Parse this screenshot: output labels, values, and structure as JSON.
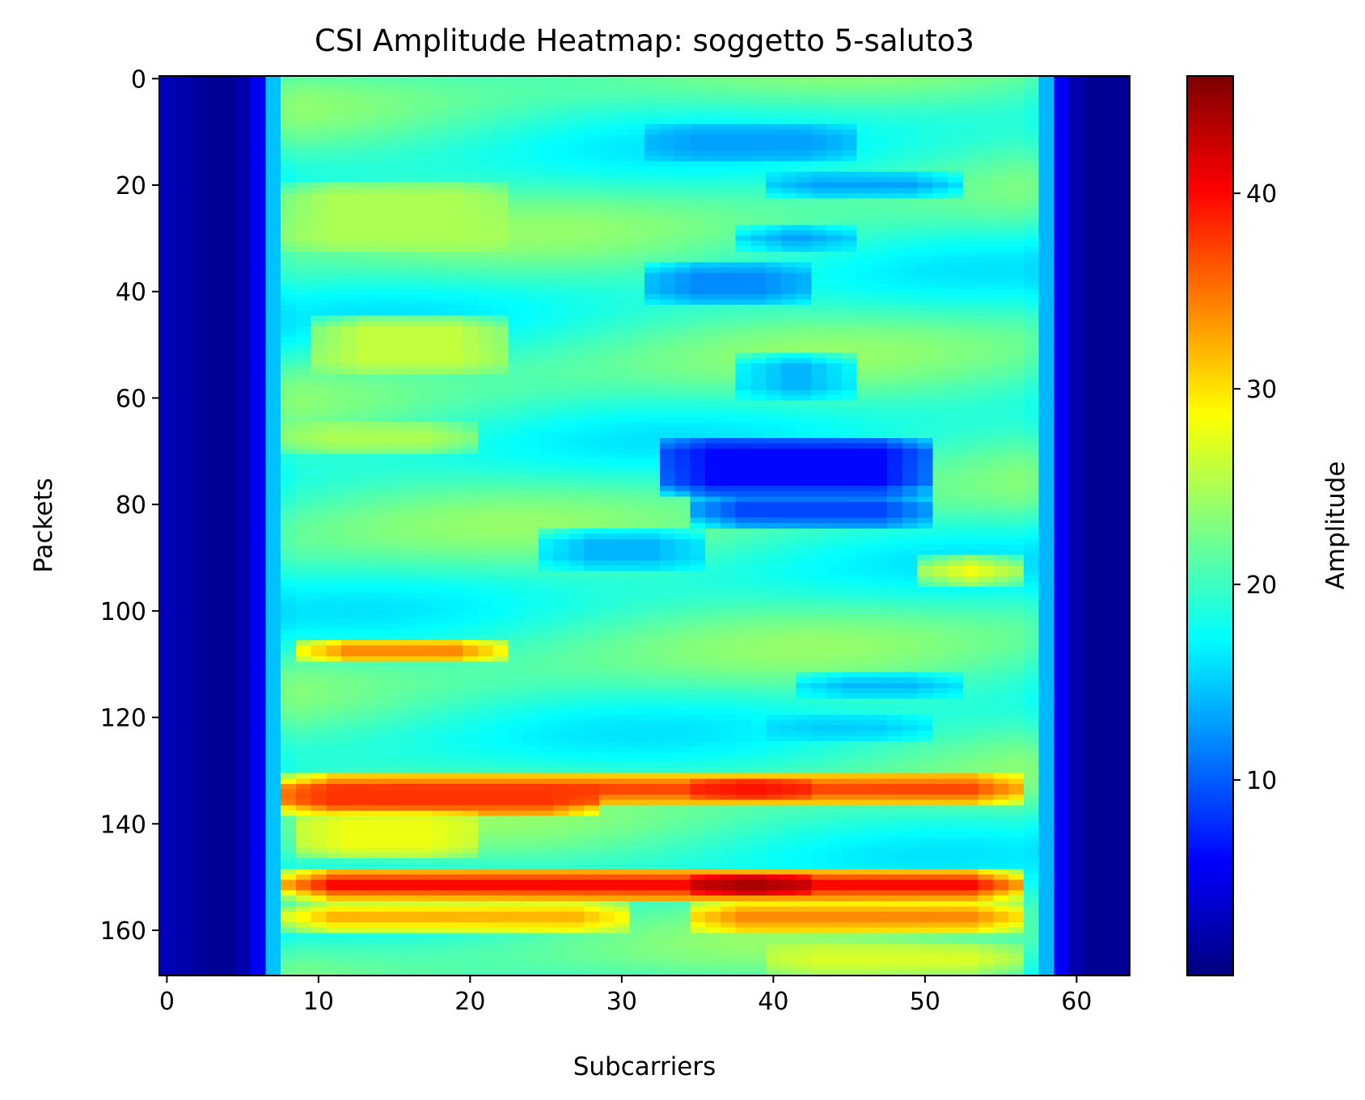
{
  "chart_data": {
    "type": "heatmap",
    "title": "CSI Amplitude Heatmap: soggetto 5-saluto3",
    "xlabel": "Subcarriers",
    "ylabel": "Packets",
    "colorbar_label": "Amplitude",
    "colormap": "jet",
    "x_range": [
      0,
      63
    ],
    "y_range": [
      0,
      168
    ],
    "y_inverted": true,
    "value_range": [
      0,
      46
    ],
    "x_ticks": [
      0,
      10,
      20,
      30,
      40,
      50,
      60
    ],
    "y_ticks": [
      0,
      20,
      40,
      60,
      80,
      100,
      120,
      140,
      160
    ],
    "colorbar_ticks": [
      10,
      20,
      30,
      40
    ],
    "grid": false,
    "subcarrier_profile": [
      2.5,
      2.0,
      1.5,
      1.0,
      1.0,
      2.0,
      5.5,
      14.5,
      19.5,
      20,
      20,
      20,
      20,
      20,
      20,
      20,
      20,
      20,
      20,
      20,
      20,
      20,
      20,
      20,
      20,
      20,
      20,
      20,
      20,
      20,
      20,
      20,
      20,
      20,
      20,
      20,
      20,
      20,
      20,
      20,
      20,
      20,
      20,
      20,
      20,
      20,
      20,
      20,
      20,
      20,
      20,
      20,
      20,
      20,
      20,
      20,
      20,
      19.5,
      14.0,
      5.5,
      2.0,
      1.0,
      1.0,
      1.0
    ],
    "features": [
      {
        "x": [
          8,
          56
        ],
        "y": [
          131,
          136
        ],
        "value": 37
      },
      {
        "x": [
          8,
          28
        ],
        "y": [
          133,
          138
        ],
        "value": 38
      },
      {
        "x": [
          35,
          42
        ],
        "y": [
          132,
          135
        ],
        "value": 40
      },
      {
        "x": [
          8,
          56
        ],
        "y": [
          149,
          154
        ],
        "value": 40
      },
      {
        "x": [
          35,
          42
        ],
        "y": [
          150,
          153
        ],
        "value": 45
      },
      {
        "x": [
          8,
          30
        ],
        "y": [
          155,
          160
        ],
        "value": 32
      },
      {
        "x": [
          35,
          56
        ],
        "y": [
          155,
          160
        ],
        "value": 34
      },
      {
        "x": [
          9,
          22
        ],
        "y": [
          106,
          109
        ],
        "value": 37
      },
      {
        "x": [
          9,
          20
        ],
        "y": [
          138,
          146
        ],
        "value": 28
      },
      {
        "x": [
          33,
          50
        ],
        "y": [
          68,
          78
        ],
        "value": 6
      },
      {
        "x": [
          35,
          50
        ],
        "y": [
          78,
          84
        ],
        "value": 9
      },
      {
        "x": [
          32,
          45
        ],
        "y": [
          9,
          15
        ],
        "value": 13
      },
      {
        "x": [
          32,
          42
        ],
        "y": [
          35,
          42
        ],
        "value": 12
      },
      {
        "x": [
          38,
          45
        ],
        "y": [
          28,
          32
        ],
        "value": 13
      },
      {
        "x": [
          38,
          45
        ],
        "y": [
          52,
          60
        ],
        "value": 14
      },
      {
        "x": [
          40,
          52
        ],
        "y": [
          18,
          22
        ],
        "value": 13
      },
      {
        "x": [
          42,
          52
        ],
        "y": [
          112,
          116
        ],
        "value": 14
      },
      {
        "x": [
          40,
          50
        ],
        "y": [
          120,
          124
        ],
        "value": 15
      },
      {
        "x": [
          8,
          22
        ],
        "y": [
          20,
          32
        ],
        "value": 25
      },
      {
        "x": [
          10,
          22
        ],
        "y": [
          45,
          55
        ],
        "value": 26
      },
      {
        "x": [
          8,
          20
        ],
        "y": [
          65,
          70
        ],
        "value": 25
      },
      {
        "x": [
          50,
          56
        ],
        "y": [
          90,
          95
        ],
        "value": 28
      },
      {
        "x": [
          40,
          56
        ],
        "y": [
          163,
          168
        ],
        "value": 27
      },
      {
        "x": [
          25,
          35
        ],
        "y": [
          85,
          92
        ],
        "value": 14
      }
    ]
  }
}
